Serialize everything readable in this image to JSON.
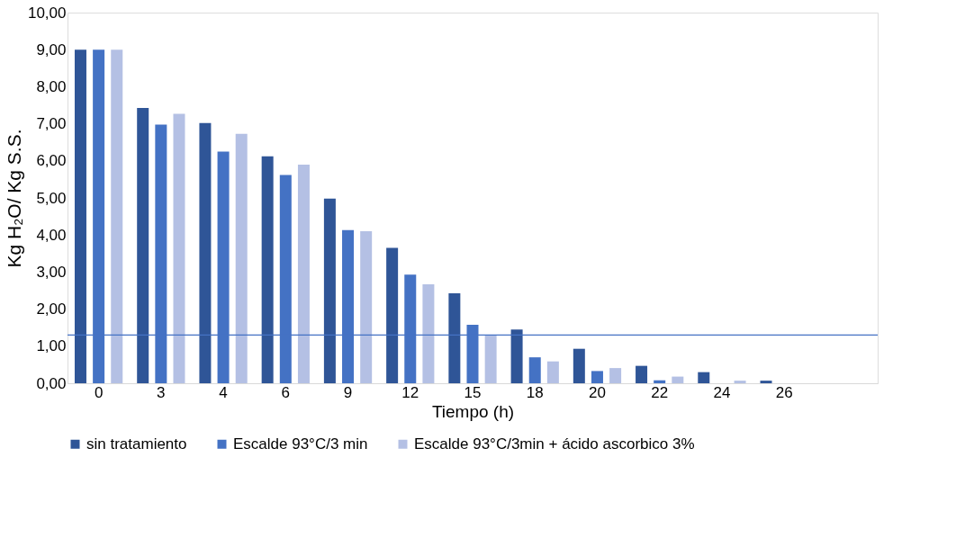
{
  "chart_data": {
    "type": "bar",
    "xlabel": "Tiempo (h)",
    "ylabel": "Kg H₂O/ Kg S.S.",
    "categories": [
      "0",
      "3",
      "4",
      "6",
      "9",
      "12",
      "15",
      "18",
      "20",
      "22",
      "24",
      "26",
      null
    ],
    "series": [
      {
        "name": "sin tratamiento",
        "color": "#2f5597",
        "values": [
          9.0,
          7.43,
          7.02,
          6.12,
          4.98,
          3.65,
          2.43,
          1.45,
          0.93,
          0.47,
          0.3,
          0.07,
          null
        ]
      },
      {
        "name": "Escalde 93°C/3 min",
        "color": "#4472c4",
        "values": [
          9.0,
          6.98,
          6.25,
          5.62,
          4.13,
          2.93,
          1.58,
          0.7,
          0.33,
          0.08,
          null,
          null,
          null
        ]
      },
      {
        "name": "Escalde 93°C/3min + ácido ascorbico 3%",
        "color": "#b4c0e4",
        "values": [
          9.0,
          7.27,
          6.73,
          5.9,
          4.1,
          2.67,
          1.3,
          0.59,
          0.41,
          0.18,
          0.07,
          null,
          null
        ]
      }
    ],
    "ylim": [
      0,
      10
    ],
    "yticks": [
      {
        "value": 0,
        "label": "0,00"
      },
      {
        "value": 1,
        "label": "1,00"
      },
      {
        "value": 2,
        "label": "2,00"
      },
      {
        "value": 3,
        "label": "3,00"
      },
      {
        "value": 4,
        "label": "4,00"
      },
      {
        "value": 5,
        "label": "5,00"
      },
      {
        "value": 6,
        "label": "6,00"
      },
      {
        "value": 7,
        "label": "7,00"
      },
      {
        "value": 8,
        "label": "8,00"
      },
      {
        "value": 9,
        "label": "9,00"
      },
      {
        "value": 10,
        "label": "10,00"
      }
    ],
    "ref_lines": [
      {
        "axis": "y",
        "value": 1.3,
        "color": "#4472c4"
      }
    ],
    "grid": false,
    "legend": "bottom"
  }
}
